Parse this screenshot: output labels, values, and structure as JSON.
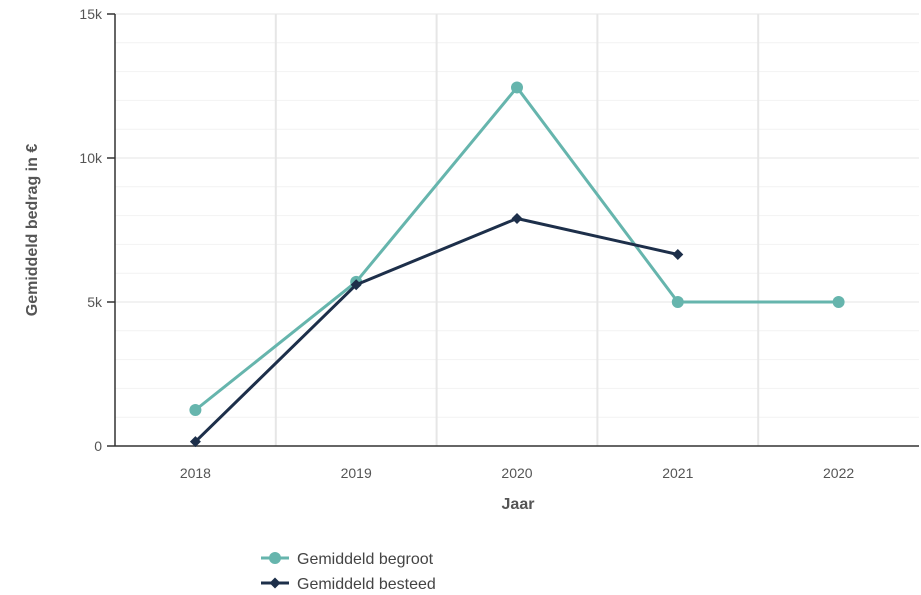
{
  "chart_data": {
    "type": "line",
    "xlabel": "Jaar",
    "ylabel": "Gemiddeld bedrag in €",
    "categories": [
      "2018",
      "2019",
      "2020",
      "2021",
      "2022"
    ],
    "ylim": [
      0,
      15000
    ],
    "yticks": [
      0,
      5000,
      10000,
      15000
    ],
    "ytick_labels": [
      "0",
      "5k",
      "10k",
      "15k"
    ],
    "grid": true,
    "legend_position": "bottom-left",
    "series": [
      {
        "name": "Gemiddeld begroot",
        "color": "#66b5ad",
        "marker": "circle",
        "values": [
          1250,
          5700,
          12450,
          5000,
          5000
        ]
      },
      {
        "name": "Gemiddeld besteed",
        "color": "#1d2f4a",
        "marker": "diamond",
        "values": [
          150,
          5600,
          7900,
          6650,
          null
        ]
      }
    ]
  }
}
